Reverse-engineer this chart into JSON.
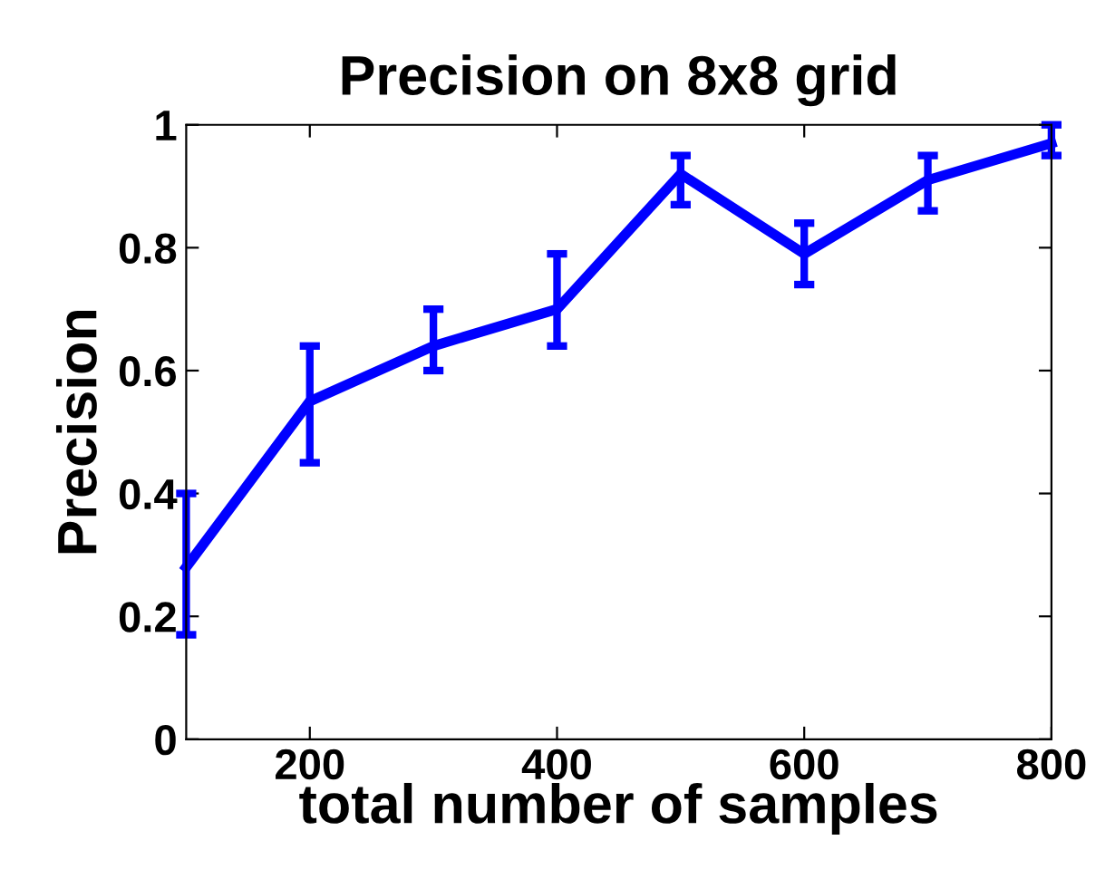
{
  "chart_data": {
    "type": "line",
    "title": "Precision on 8x8 grid",
    "xlabel": "total number of samples",
    "ylabel": "Precision",
    "x": [
      100,
      200,
      300,
      400,
      500,
      600,
      700,
      800
    ],
    "series": [
      {
        "color": "#0000ff",
        "values": [
          0.28,
          0.55,
          0.64,
          0.7,
          0.92,
          0.79,
          0.91,
          0.97
        ],
        "errors": [
          [
            0.17,
            0.4
          ],
          [
            0.45,
            0.64
          ],
          [
            0.6,
            0.7
          ],
          [
            0.64,
            0.79
          ],
          [
            0.87,
            0.95
          ],
          [
            0.74,
            0.84
          ],
          [
            0.86,
            0.95
          ],
          [
            0.95,
            1.0
          ]
        ]
      }
    ],
    "xlim": [
      100,
      800
    ],
    "xticks": [
      200,
      400,
      600,
      800
    ],
    "ylim": [
      0,
      1
    ],
    "yticks": [
      0,
      0.2,
      0.4,
      0.6,
      0.8,
      1
    ],
    "grid": false,
    "marker": "none",
    "line_style": "solid",
    "legend": false
  }
}
